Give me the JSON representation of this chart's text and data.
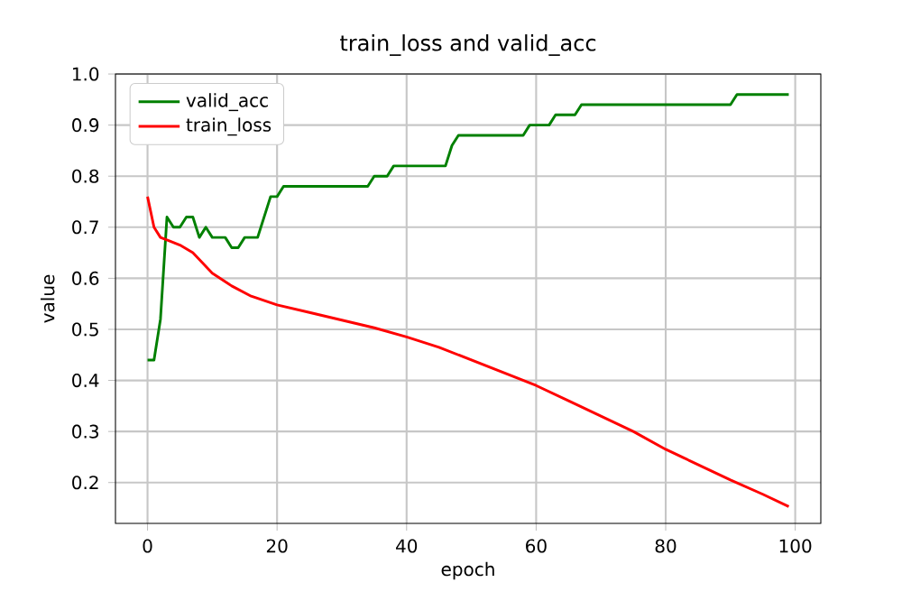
{
  "chart_data": {
    "type": "line",
    "title": "train_loss and valid_acc",
    "xlabel": "epoch",
    "ylabel": "value",
    "xlim": [
      -4.95,
      103.95
    ],
    "ylim": [
      0.12,
      1.0
    ],
    "xticks": [
      0,
      20,
      40,
      60,
      80,
      100
    ],
    "yticks": [
      0.2,
      0.3,
      0.4,
      0.5,
      0.6,
      0.7,
      0.8,
      0.9,
      {
        "value": 1.0,
        "label": "1.0"
      }
    ],
    "grid": true,
    "legend": "top left",
    "line_style": "solid",
    "marker": "none",
    "series": [
      {
        "name": "valid_acc",
        "color": "#008000",
        "x": [
          0,
          1,
          2,
          3,
          4,
          5,
          6,
          7,
          8,
          9,
          10,
          11,
          12,
          13,
          14,
          15,
          16,
          17,
          18,
          19,
          20,
          21,
          22,
          23,
          24,
          25,
          26,
          27,
          28,
          29,
          30,
          31,
          32,
          33,
          34,
          35,
          36,
          37,
          38,
          39,
          40,
          41,
          42,
          43,
          44,
          45,
          46,
          47,
          48,
          49,
          50,
          51,
          52,
          53,
          54,
          55,
          56,
          57,
          58,
          59,
          60,
          61,
          62,
          63,
          64,
          65,
          66,
          67,
          68,
          69,
          70,
          71,
          72,
          73,
          74,
          75,
          76,
          77,
          78,
          79,
          80,
          81,
          82,
          83,
          84,
          85,
          86,
          87,
          88,
          89,
          90,
          91,
          92,
          93,
          94,
          95,
          96,
          97,
          98,
          99
        ],
        "values": [
          0.44,
          0.44,
          0.52,
          0.72,
          0.7,
          0.7,
          0.72,
          0.72,
          0.68,
          0.7,
          0.68,
          0.68,
          0.68,
          0.66,
          0.66,
          0.68,
          0.68,
          0.68,
          0.72,
          0.76,
          0.76,
          0.78,
          0.78,
          0.78,
          0.78,
          0.78,
          0.78,
          0.78,
          0.78,
          0.78,
          0.78,
          0.78,
          0.78,
          0.78,
          0.78,
          0.8,
          0.8,
          0.8,
          0.82,
          0.82,
          0.82,
          0.82,
          0.82,
          0.82,
          0.82,
          0.82,
          0.82,
          0.86,
          0.88,
          0.88,
          0.88,
          0.88,
          0.88,
          0.88,
          0.88,
          0.88,
          0.88,
          0.88,
          0.88,
          0.9,
          0.9,
          0.9,
          0.9,
          0.92,
          0.92,
          0.92,
          0.92,
          0.94,
          0.94,
          0.94,
          0.94,
          0.94,
          0.94,
          0.94,
          0.94,
          0.94,
          0.94,
          0.94,
          0.94,
          0.94,
          0.94,
          0.94,
          0.94,
          0.94,
          0.94,
          0.94,
          0.94,
          0.94,
          0.94,
          0.94,
          0.94,
          0.96,
          0.96,
          0.96,
          0.96,
          0.96,
          0.96,
          0.96,
          0.96,
          0.96
        ]
      },
      {
        "name": "train_loss",
        "color": "#ff0000",
        "x": [
          0,
          1,
          2,
          3,
          5,
          7,
          10,
          13,
          16,
          20,
          25,
          30,
          35,
          40,
          45,
          50,
          55,
          60,
          65,
          70,
          75,
          80,
          85,
          90,
          95,
          99
        ],
        "values": [
          0.76,
          0.7,
          0.68,
          0.675,
          0.665,
          0.65,
          0.61,
          0.585,
          0.565,
          0.548,
          0.533,
          0.518,
          0.503,
          0.485,
          0.465,
          0.44,
          0.415,
          0.39,
          0.36,
          0.33,
          0.3,
          0.265,
          0.235,
          0.205,
          0.177,
          0.153
        ]
      }
    ]
  }
}
